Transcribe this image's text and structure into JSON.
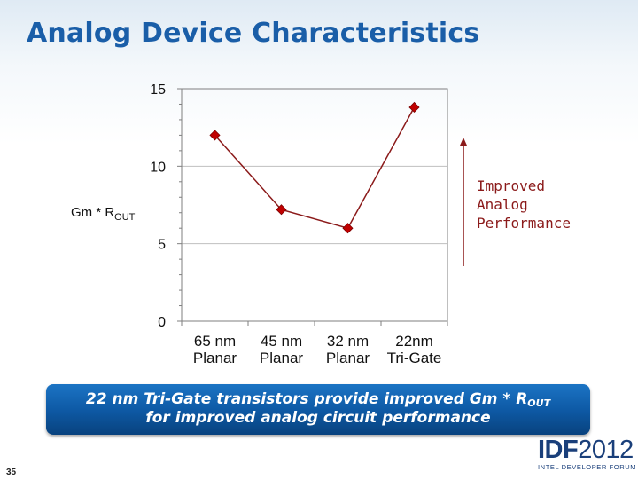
{
  "slide": {
    "title": "Analog Device Characteristics",
    "page_number": "35"
  },
  "annotation": {
    "lines": [
      "Improved",
      "Analog",
      "Performance"
    ],
    "color": "#8b1a1a"
  },
  "banner": {
    "line1_pre": "22 nm Tri-Gate transistors provide improved Gm * R",
    "line1_sub": "OUT",
    "line2": "for improved analog circuit performance"
  },
  "logo": {
    "main_a": "IDF",
    "main_b": "2012",
    "sub": "INTEL DEVELOPER FORUM"
  },
  "chart_data": {
    "type": "line",
    "categories": [
      [
        "65 nm",
        "Planar"
      ],
      [
        "45 nm",
        "Planar"
      ],
      [
        "32 nm",
        "Planar"
      ],
      [
        "22nm",
        "Tri-Gate"
      ]
    ],
    "series": [
      {
        "values": [
          12.0,
          7.2,
          6.0,
          13.8
        ],
        "color": "#c00000",
        "line_color": "#8b1a1a",
        "marker": "diamond"
      }
    ],
    "ylabel": "Gm * R",
    "ylabel_sub": "OUT",
    "ylim": [
      0,
      15
    ],
    "yticks": [
      0,
      5,
      10,
      15
    ],
    "grid": true,
    "legend": "none"
  }
}
